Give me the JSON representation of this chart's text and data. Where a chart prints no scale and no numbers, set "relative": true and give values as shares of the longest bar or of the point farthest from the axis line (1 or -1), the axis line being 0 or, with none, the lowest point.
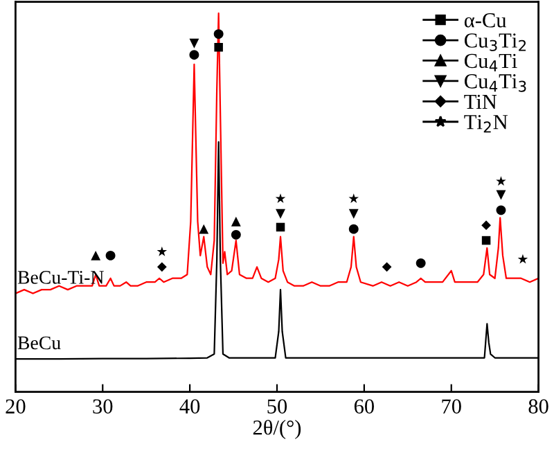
{
  "chart_data": {
    "type": "line",
    "relative": true,
    "xlabel": "2θ/(°)",
    "xlim": [
      20,
      80
    ],
    "xticks": [
      20,
      30,
      40,
      50,
      60,
      70,
      80
    ],
    "tick_labels": "x",
    "legend": "top right",
    "series": [
      {
        "name": "BeCu-Ti-N",
        "color": "#ff0000",
        "x": [
          20,
          21,
          22,
          23,
          24,
          25,
          26,
          27,
          28,
          28.8,
          29.2,
          29.6,
          30.4,
          30.9,
          31.3,
          32,
          32.7,
          33.2,
          34,
          35,
          36,
          36.5,
          37,
          38,
          39,
          39.7,
          40.1,
          40.5,
          40.9,
          41.2,
          41.6,
          42.0,
          42.4,
          42.8,
          43.1,
          43.3,
          43.6,
          43.8,
          44.0,
          44.3,
          44.8,
          45.3,
          45.7,
          46.5,
          47.2,
          47.7,
          48.2,
          49,
          49.8,
          50.2,
          50.4,
          50.7,
          51.2,
          52,
          53,
          54,
          55,
          56,
          57,
          58,
          58.5,
          58.8,
          59.1,
          59.6,
          61,
          62,
          63,
          64,
          65,
          66,
          66.5,
          67,
          68,
          69,
          70,
          70.4,
          71,
          72,
          73,
          73.7,
          74.1,
          74.4,
          75,
          75.4,
          75.6,
          75.9,
          76.3,
          77,
          78,
          79,
          80
        ],
        "values": [
          0.26,
          0.27,
          0.26,
          0.27,
          0.27,
          0.28,
          0.27,
          0.28,
          0.28,
          0.28,
          0.31,
          0.28,
          0.28,
          0.3,
          0.28,
          0.28,
          0.29,
          0.28,
          0.28,
          0.29,
          0.29,
          0.3,
          0.29,
          0.3,
          0.3,
          0.31,
          0.45,
          0.865,
          0.45,
          0.36,
          0.41,
          0.33,
          0.31,
          0.4,
          0.8,
          1.0,
          0.6,
          0.34,
          0.37,
          0.31,
          0.32,
          0.4,
          0.31,
          0.3,
          0.3,
          0.33,
          0.3,
          0.29,
          0.3,
          0.35,
          0.41,
          0.32,
          0.29,
          0.28,
          0.28,
          0.29,
          0.28,
          0.28,
          0.29,
          0.29,
          0.33,
          0.41,
          0.33,
          0.29,
          0.28,
          0.29,
          0.28,
          0.29,
          0.28,
          0.29,
          0.3,
          0.29,
          0.29,
          0.29,
          0.32,
          0.29,
          0.29,
          0.29,
          0.29,
          0.31,
          0.38,
          0.31,
          0.3,
          0.38,
          0.46,
          0.36,
          0.3,
          0.3,
          0.3,
          0.29,
          0.3
        ]
      },
      {
        "name": "BeCu",
        "color": "#000000",
        "x": [
          20,
          25,
          30,
          35,
          40,
          42,
          42.8,
          43.1,
          43.3,
          43.5,
          43.8,
          44.5,
          48,
          49.8,
          50.2,
          50.4,
          50.6,
          51.0,
          55,
          60,
          65,
          70,
          73.8,
          74.1,
          74.3,
          74.5,
          75,
          80
        ],
        "values": [
          0.087,
          0.087,
          0.088,
          0.088,
          0.089,
          0.09,
          0.1,
          0.35,
          0.66,
          0.35,
          0.1,
          0.09,
          0.09,
          0.09,
          0.16,
          0.27,
          0.16,
          0.09,
          0.09,
          0.09,
          0.09,
          0.09,
          0.09,
          0.18,
          0.13,
          0.1,
          0.09,
          0.09
        ]
      },
      {
        "name": "α-Cu",
        "type": "scatter",
        "marker": "square",
        "color": "#000000",
        "x": [
          43.3,
          50.4,
          74.0
        ],
        "values": [
          0.91,
          0.435,
          0.4
        ]
      },
      {
        "name": "Cu$_{3}$Ti$_{2}$",
        "type": "scatter",
        "marker": "circle",
        "color": "#000000",
        "x": [
          30.9,
          40.5,
          43.3,
          45.3,
          58.8,
          66.5,
          75.7
        ],
        "values": [
          0.36,
          0.89,
          0.945,
          0.415,
          0.43,
          0.34,
          0.48
        ]
      },
      {
        "name": "Cu$_{4}$Ti",
        "type": "scatter",
        "marker": "triangle",
        "color": "#000000",
        "x": [
          29.2,
          41.6,
          45.3
        ],
        "values": [
          0.36,
          0.43,
          0.45
        ]
      },
      {
        "name": "Cu$_{4}$Ti$_{3}$",
        "type": "scatter",
        "marker": "triangle_down",
        "color": "#000000",
        "x": [
          40.5,
          50.4,
          58.8,
          75.7
        ],
        "values": [
          0.92,
          0.47,
          0.47,
          0.52
        ]
      },
      {
        "name": "TiN",
        "type": "scatter",
        "marker": "diamond",
        "color": "#000000",
        "x": [
          36.8,
          62.6,
          74.0
        ],
        "values": [
          0.33,
          0.33,
          0.44
        ]
      },
      {
        "name": "Ti$_{2}$N",
        "type": "scatter",
        "marker": "star",
        "color": "#000000",
        "x": [
          36.8,
          50.4,
          58.8,
          75.7,
          78.2
        ],
        "values": [
          0.37,
          0.51,
          0.51,
          0.556,
          0.35
        ]
      }
    ]
  }
}
